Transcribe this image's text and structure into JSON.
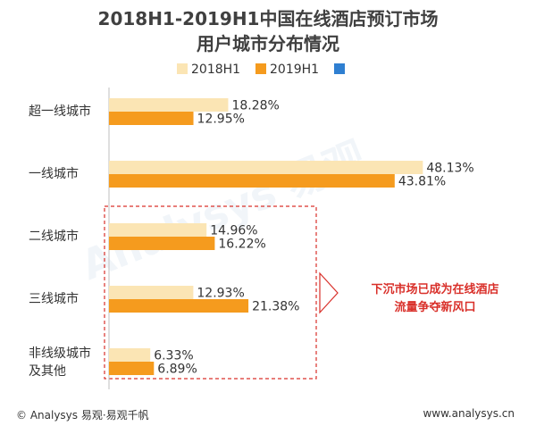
{
  "title_line1": "2018H1-2019H1中国在线酒店预订市场",
  "title_line2": "用户城市分布情况",
  "legend": [
    {
      "label": "2018H1",
      "color": "#fbe5b4"
    },
    {
      "label": "2019H1",
      "color": "#f59b1e"
    },
    {
      "label": "",
      "color": "#2f7fd1"
    }
  ],
  "callout": {
    "line1": "下沉市场已成为在线酒店",
    "line2": "流量争夺新风口",
    "color": "#d9302a"
  },
  "footer": {
    "left": "© Analysys 易观·易观千帆",
    "right": "www.analysys.cn"
  },
  "watermark": "Analysys 易观",
  "chart_data": {
    "type": "bar",
    "orientation": "horizontal",
    "categories": [
      "超一线城市",
      "一线城市",
      "二线城市",
      "三线城市",
      "非线级城市\n及其他"
    ],
    "series": [
      {
        "name": "2018H1",
        "values": [
          18.28,
          48.13,
          14.96,
          12.93,
          6.33
        ],
        "labels": [
          "18.28%",
          "48.13%",
          "14.96%",
          "12.93%",
          "6.33%"
        ],
        "color": "#fbe5b4"
      },
      {
        "name": "2019H1",
        "values": [
          12.95,
          43.81,
          16.22,
          21.38,
          6.89
        ],
        "labels": [
          "12.95%",
          "43.81%",
          "16.22%",
          "21.38%",
          "6.89%"
        ],
        "color": "#f59b1e"
      }
    ],
    "xlim": [
      0,
      50
    ],
    "grid": false,
    "legend_position": "top"
  }
}
